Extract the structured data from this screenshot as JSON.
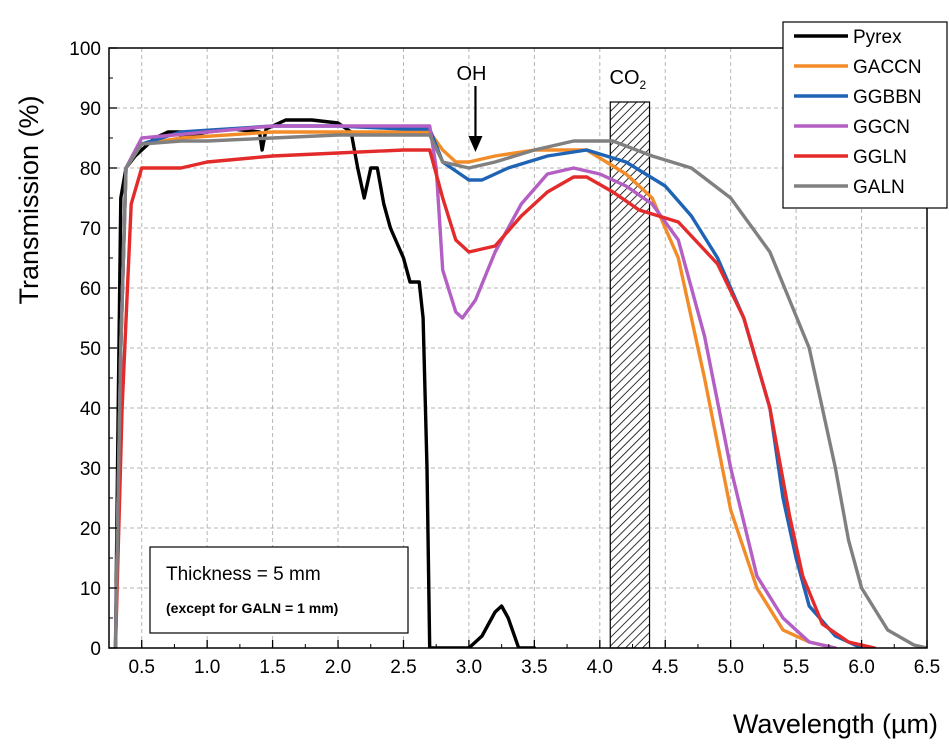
{
  "chart_data": {
    "type": "line",
    "xlabel": "Wavelength (µm)",
    "ylabel": "Transmission (%)",
    "xlim": [
      0.25,
      6.5
    ],
    "ylim": [
      0,
      100
    ],
    "xticks": [
      "0.5",
      "1.0",
      "1.5",
      "2.0",
      "2.5",
      "3.0",
      "3.5",
      "4.0",
      "4.5",
      "5.0",
      "5.5",
      "6.0",
      "6.5"
    ],
    "xtick_values": [
      0.5,
      1.0,
      1.5,
      2.0,
      2.5,
      3.0,
      3.5,
      4.0,
      4.5,
      5.0,
      5.5,
      6.0,
      6.5
    ],
    "yticks": [
      "0",
      "10",
      "20",
      "30",
      "40",
      "50",
      "60",
      "70",
      "80",
      "90",
      "100"
    ],
    "ytick_values": [
      0,
      10,
      20,
      30,
      40,
      50,
      60,
      70,
      80,
      90,
      100
    ],
    "grid": true,
    "legend_position": "top-right",
    "series": [
      {
        "name": "Pyrex",
        "color": "#000000",
        "points": [
          [
            0.3,
            0
          ],
          [
            0.32,
            40
          ],
          [
            0.34,
            75
          ],
          [
            0.38,
            80
          ],
          [
            0.45,
            82
          ],
          [
            0.6,
            85
          ],
          [
            0.7,
            86
          ],
          [
            0.8,
            86
          ],
          [
            0.8,
            85
          ],
          [
            1.0,
            86
          ],
          [
            1.2,
            86.5
          ],
          [
            1.4,
            86
          ],
          [
            1.42,
            83
          ],
          [
            1.45,
            86.5
          ],
          [
            1.6,
            88
          ],
          [
            1.8,
            88
          ],
          [
            2.0,
            87.5
          ],
          [
            2.1,
            86
          ],
          [
            2.15,
            80
          ],
          [
            2.2,
            75
          ],
          [
            2.25,
            80
          ],
          [
            2.3,
            80
          ],
          [
            2.35,
            74
          ],
          [
            2.4,
            70
          ],
          [
            2.5,
            65
          ],
          [
            2.55,
            61
          ],
          [
            2.62,
            61
          ],
          [
            2.65,
            55
          ],
          [
            2.68,
            30
          ],
          [
            2.7,
            0
          ],
          [
            3.0,
            0
          ],
          [
            3.1,
            2
          ],
          [
            3.2,
            6
          ],
          [
            3.25,
            7
          ],
          [
            3.3,
            5
          ],
          [
            3.38,
            0
          ],
          [
            3.5,
            0
          ]
        ]
      },
      {
        "name": "GACCN",
        "color": "#f28c28",
        "points": [
          [
            0.3,
            0
          ],
          [
            0.34,
            50
          ],
          [
            0.38,
            80
          ],
          [
            0.5,
            84
          ],
          [
            0.8,
            85
          ],
          [
            1.5,
            86
          ],
          [
            2.0,
            86
          ],
          [
            2.5,
            86
          ],
          [
            2.7,
            86
          ],
          [
            2.8,
            83
          ],
          [
            2.9,
            81
          ],
          [
            3.0,
            81
          ],
          [
            3.2,
            82
          ],
          [
            3.5,
            83
          ],
          [
            3.9,
            83
          ],
          [
            4.2,
            79
          ],
          [
            4.4,
            75
          ],
          [
            4.6,
            65
          ],
          [
            4.8,
            45
          ],
          [
            5.0,
            23
          ],
          [
            5.2,
            10
          ],
          [
            5.4,
            3
          ],
          [
            5.6,
            1
          ],
          [
            5.8,
            0
          ]
        ]
      },
      {
        "name": "GGBBN",
        "color": "#1f63b5",
        "points": [
          [
            0.3,
            0
          ],
          [
            0.34,
            50
          ],
          [
            0.38,
            80
          ],
          [
            0.5,
            84
          ],
          [
            0.8,
            86
          ],
          [
            1.5,
            87
          ],
          [
            2.0,
            87
          ],
          [
            2.5,
            86.5
          ],
          [
            2.7,
            86.5
          ],
          [
            2.8,
            81
          ],
          [
            3.0,
            78
          ],
          [
            3.1,
            78
          ],
          [
            3.3,
            80
          ],
          [
            3.6,
            82
          ],
          [
            3.9,
            83
          ],
          [
            4.2,
            81
          ],
          [
            4.5,
            77
          ],
          [
            4.7,
            72
          ],
          [
            4.9,
            65
          ],
          [
            5.1,
            55
          ],
          [
            5.3,
            40
          ],
          [
            5.4,
            25
          ],
          [
            5.5,
            15
          ],
          [
            5.6,
            7
          ],
          [
            5.8,
            2
          ],
          [
            6.0,
            0
          ]
        ]
      },
      {
        "name": "GGCN",
        "color": "#b35fc3",
        "points": [
          [
            0.3,
            0
          ],
          [
            0.34,
            50
          ],
          [
            0.38,
            80
          ],
          [
            0.5,
            85
          ],
          [
            1.0,
            86
          ],
          [
            1.5,
            87
          ],
          [
            2.0,
            87
          ],
          [
            2.5,
            87
          ],
          [
            2.7,
            87
          ],
          [
            2.75,
            80
          ],
          [
            2.8,
            63
          ],
          [
            2.9,
            56
          ],
          [
            2.95,
            55
          ],
          [
            3.05,
            58
          ],
          [
            3.2,
            66
          ],
          [
            3.4,
            74
          ],
          [
            3.6,
            79
          ],
          [
            3.8,
            80
          ],
          [
            4.0,
            79
          ],
          [
            4.2,
            77
          ],
          [
            4.4,
            74
          ],
          [
            4.6,
            68
          ],
          [
            4.8,
            52
          ],
          [
            5.0,
            30
          ],
          [
            5.2,
            12
          ],
          [
            5.4,
            5
          ],
          [
            5.6,
            1
          ],
          [
            5.8,
            0
          ]
        ]
      },
      {
        "name": "GGLN",
        "color": "#e32b2b",
        "points": [
          [
            0.3,
            0
          ],
          [
            0.35,
            40
          ],
          [
            0.42,
            74
          ],
          [
            0.5,
            80
          ],
          [
            0.8,
            80
          ],
          [
            1.0,
            81
          ],
          [
            1.5,
            82
          ],
          [
            2.0,
            82.5
          ],
          [
            2.5,
            83
          ],
          [
            2.7,
            83
          ],
          [
            2.8,
            75
          ],
          [
            2.9,
            68
          ],
          [
            3.0,
            66
          ],
          [
            3.2,
            67
          ],
          [
            3.4,
            72
          ],
          [
            3.6,
            76
          ],
          [
            3.8,
            78.5
          ],
          [
            3.9,
            78.5
          ],
          [
            4.1,
            76
          ],
          [
            4.3,
            73
          ],
          [
            4.6,
            71
          ],
          [
            4.9,
            64
          ],
          [
            5.1,
            55
          ],
          [
            5.3,
            40
          ],
          [
            5.45,
            22
          ],
          [
            5.55,
            12
          ],
          [
            5.7,
            4
          ],
          [
            5.9,
            1
          ],
          [
            6.1,
            0
          ]
        ]
      },
      {
        "name": "GALN",
        "color": "#808080",
        "points": [
          [
            0.3,
            0
          ],
          [
            0.34,
            50
          ],
          [
            0.38,
            80
          ],
          [
            0.5,
            84
          ],
          [
            0.8,
            84.5
          ],
          [
            1.0,
            84.5
          ],
          [
            1.5,
            85
          ],
          [
            2.0,
            85.5
          ],
          [
            2.5,
            85.5
          ],
          [
            2.7,
            85.5
          ],
          [
            2.8,
            81
          ],
          [
            3.0,
            80
          ],
          [
            3.2,
            81
          ],
          [
            3.5,
            83
          ],
          [
            3.8,
            84.5
          ],
          [
            4.1,
            84.5
          ],
          [
            4.4,
            82
          ],
          [
            4.7,
            80
          ],
          [
            5.0,
            75
          ],
          [
            5.3,
            66
          ],
          [
            5.6,
            50
          ],
          [
            5.8,
            30
          ],
          [
            5.9,
            18
          ],
          [
            6.0,
            10
          ],
          [
            6.2,
            3
          ],
          [
            6.4,
            0.5
          ],
          [
            6.5,
            0
          ]
        ]
      }
    ],
    "annotations": {
      "oh_label": "OH",
      "oh_arrow_x": 3.05,
      "co2_label_main": "CO",
      "co2_label_sub": "2",
      "co2_band": [
        4.08,
        4.38
      ],
      "co2_band_top": 91
    },
    "note": {
      "line1": "Thickness = 5 mm",
      "line2": "(except for GALN = 1 mm)"
    }
  }
}
